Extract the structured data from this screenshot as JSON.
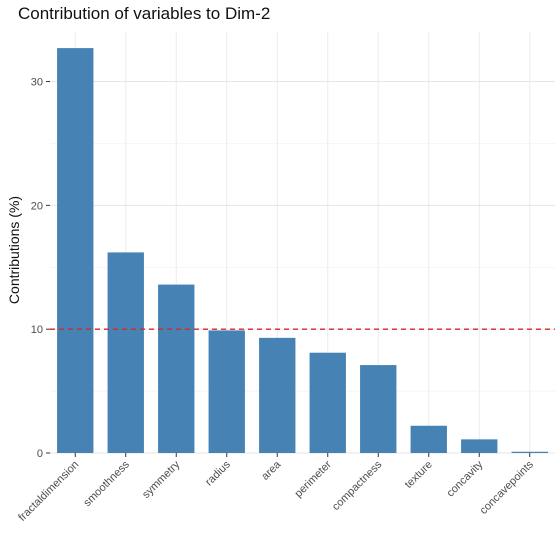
{
  "chart_data": {
    "type": "bar",
    "title": "Contribution of variables to Dim-2",
    "xlabel": "",
    "ylabel": "Contributions (%)",
    "categories": [
      "fractaldimension",
      "smoothness",
      "symmetry",
      "radius",
      "area",
      "perimeter",
      "compactness",
      "texture",
      "concavity",
      "concavepoints"
    ],
    "values": [
      32.7,
      16.2,
      13.6,
      9.9,
      9.3,
      8.1,
      7.1,
      2.2,
      1.1,
      0.1
    ],
    "ylim": [
      0,
      34
    ],
    "yticks": [
      0,
      10,
      20,
      30
    ],
    "reference_line": 10,
    "grid": true,
    "colors": {
      "bar": "#4682B4",
      "reference_line": "#d62728",
      "grid": "#ebebeb"
    }
  }
}
